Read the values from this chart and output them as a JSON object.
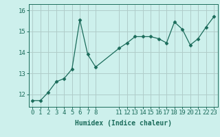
{
  "x": [
    0,
    1,
    2,
    3,
    4,
    5,
    6,
    7,
    8,
    11,
    12,
    13,
    14,
    15,
    16,
    17,
    18,
    19,
    20,
    21,
    22,
    23
  ],
  "y": [
    11.7,
    11.7,
    12.1,
    12.6,
    12.75,
    13.2,
    15.55,
    13.9,
    13.3,
    14.2,
    14.45,
    14.75,
    14.75,
    14.75,
    14.65,
    14.45,
    15.45,
    15.1,
    14.35,
    14.65,
    15.2,
    15.7
  ],
  "line_color": "#1a6b5a",
  "marker": "D",
  "marker_size": 2.5,
  "bg_color": "#cdf0ec",
  "grid_color": "#b0ccc9",
  "xlabel": "Humidex (Indice chaleur)",
  "xlabel_fontsize": 7,
  "tick_color": "#1a6b5a",
  "tick_fontsize": 6.5,
  "yticks": [
    12,
    13,
    14,
    15,
    16
  ],
  "ylim": [
    11.4,
    16.3
  ],
  "xlim": [
    -0.5,
    23.5
  ],
  "xtick_positions": [
    0,
    1,
    2,
    3,
    4,
    5,
    6,
    7,
    8,
    11,
    12,
    13,
    14,
    15,
    16,
    17,
    18,
    19,
    20,
    21,
    22,
    23
  ],
  "xtick_labels": [
    "0",
    "1",
    "2",
    "3",
    "4",
    "5",
    "6",
    "7",
    "8",
    "11",
    "12",
    "13",
    "14",
    "15",
    "16",
    "17",
    "18",
    "19",
    "20",
    "21",
    "22",
    "23"
  ]
}
